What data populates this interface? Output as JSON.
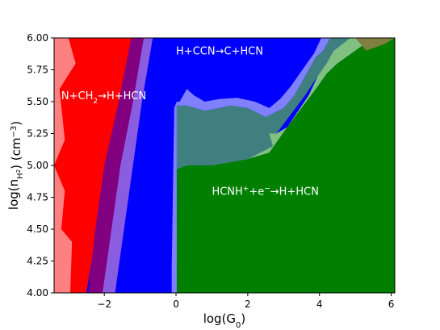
{
  "chart_data": {
    "type": "area",
    "title": "",
    "xlabel": {
      "base": "log(G",
      "sub": "0",
      "tail": ")"
    },
    "ylabel": {
      "base": "log(n",
      "sub": "H",
      "subsub": "2",
      "tail": ") (cm",
      "sup": "−3",
      "end": ")"
    },
    "xlim": [
      -3.4,
      6.1
    ],
    "ylim": [
      4.0,
      6.0
    ],
    "x_ticks": [
      -2,
      0,
      2,
      4,
      6
    ],
    "x_tick_labels": [
      "−2",
      "0",
      "2",
      "4",
      "6"
    ],
    "y_ticks": [
      4.0,
      4.25,
      4.5,
      4.75,
      5.0,
      5.25,
      5.5,
      5.75,
      6.0
    ],
    "y_tick_labels": [
      "4.00",
      "4.25",
      "4.50",
      "4.75",
      "5.00",
      "5.25",
      "5.50",
      "5.75",
      "6.00"
    ],
    "grid": false,
    "colors": {
      "background": "#0000ff",
      "n_ch2_region": "#ff0000",
      "n_ch2_light": "#ff8080",
      "dark_violet": "#800080",
      "light_violet": "#8a5ce0",
      "hcnh_region": "#007f00",
      "light_green": "#80c080",
      "teal_overlap": "#3f7f7f",
      "light_blue_overlap": "#8080ff",
      "olive": "#7f7f3f"
    },
    "regions": [
      {
        "name": "light-red-band",
        "color": "#ff8080",
        "polygon": [
          [
            -3.4,
            4.0
          ],
          [
            -2.55,
            4.0
          ],
          [
            -2.7,
            4.7
          ],
          [
            -2.35,
            5.6
          ],
          [
            -2.15,
            6.0
          ],
          [
            -3.4,
            6.0
          ]
        ]
      },
      {
        "name": "n-ch2-region",
        "color": "#ff0000",
        "polygon": [
          [
            -2.95,
            4.0
          ],
          [
            -2.5,
            4.0
          ],
          [
            -2.2,
            4.5
          ],
          [
            -1.9,
            5.0
          ],
          [
            -1.5,
            5.5
          ],
          [
            -1.2,
            6.0
          ],
          [
            -3.0,
            6.0
          ],
          [
            -2.8,
            5.8
          ],
          [
            -3.25,
            5.6
          ],
          [
            -3.1,
            5.2
          ],
          [
            -3.4,
            5.0
          ],
          [
            -3.1,
            4.8
          ],
          [
            -3.2,
            4.5
          ],
          [
            -2.9,
            4.4
          ]
        ]
      },
      {
        "name": "dark-violet-band",
        "color": "#800080",
        "polygon": [
          [
            -2.45,
            4.0
          ],
          [
            -2.0,
            4.0
          ],
          [
            -1.75,
            4.5
          ],
          [
            -1.5,
            5.0
          ],
          [
            -1.15,
            5.5
          ],
          [
            -0.85,
            6.0
          ],
          [
            -1.25,
            6.0
          ],
          [
            -1.6,
            5.5
          ],
          [
            -2.0,
            5.0
          ],
          [
            -2.25,
            4.5
          ]
        ]
      },
      {
        "name": "light-violet-band",
        "color": "#8a5ce0",
        "polygon": [
          [
            -2.05,
            4.0
          ],
          [
            -1.7,
            4.0
          ],
          [
            -1.45,
            4.5
          ],
          [
            -1.2,
            5.0
          ],
          [
            -0.95,
            5.5
          ],
          [
            -0.65,
            6.0
          ],
          [
            -0.9,
            6.0
          ],
          [
            -1.2,
            5.5
          ],
          [
            -1.55,
            5.0
          ],
          [
            -1.8,
            4.5
          ]
        ]
      },
      {
        "name": "hcnh-region",
        "color": "#007f00",
        "polygon": [
          [
            0.0,
            4.0
          ],
          [
            0.02,
            4.97
          ],
          [
            0.3,
            5.0
          ],
          [
            1.0,
            5.0
          ],
          [
            2.0,
            5.05
          ],
          [
            2.6,
            5.1
          ],
          [
            3.1,
            5.3
          ],
          [
            3.5,
            5.45
          ],
          [
            3.9,
            5.6
          ],
          [
            4.2,
            5.72
          ],
          [
            4.5,
            5.8
          ],
          [
            5.0,
            5.9
          ],
          [
            5.5,
            6.0
          ],
          [
            6.1,
            6.0
          ],
          [
            6.1,
            4.0
          ]
        ]
      },
      {
        "name": "light-green-band",
        "color": "#80c080",
        "polygon": [
          [
            0.02,
            4.97
          ],
          [
            0.3,
            5.0
          ],
          [
            1.0,
            5.0
          ],
          [
            2.0,
            5.05
          ],
          [
            2.6,
            5.1
          ],
          [
            3.1,
            5.3
          ],
          [
            3.5,
            5.45
          ],
          [
            3.9,
            5.6
          ],
          [
            4.2,
            5.72
          ],
          [
            4.5,
            5.8
          ],
          [
            5.0,
            5.9
          ],
          [
            5.5,
            6.0
          ],
          [
            4.85,
            6.0
          ],
          [
            4.4,
            5.9
          ],
          [
            4.1,
            5.8
          ],
          [
            3.95,
            5.7
          ],
          [
            3.7,
            5.55
          ],
          [
            3.1,
            5.3
          ],
          [
            2.8,
            5.25
          ],
          [
            2.6,
            5.25
          ],
          [
            1.6,
            5.3
          ],
          [
            0.02,
            5.35
          ]
        ]
      },
      {
        "name": "teal-overlap",
        "color": "#3f7f7f",
        "polygon": [
          [
            0.02,
            4.97
          ],
          [
            0.3,
            5.0
          ],
          [
            1.0,
            5.0
          ],
          [
            2.0,
            5.05
          ],
          [
            2.7,
            5.15
          ],
          [
            2.6,
            5.25
          ],
          [
            2.8,
            5.25
          ],
          [
            3.2,
            5.4
          ],
          [
            3.6,
            5.55
          ],
          [
            3.95,
            5.7
          ],
          [
            4.2,
            5.8
          ],
          [
            4.4,
            5.9
          ],
          [
            4.85,
            6.0
          ],
          [
            4.3,
            6.0
          ],
          [
            4.1,
            5.9
          ],
          [
            3.9,
            5.85
          ],
          [
            3.6,
            5.7
          ],
          [
            3.3,
            5.55
          ],
          [
            3.0,
            5.45
          ],
          [
            2.5,
            5.38
          ],
          [
            2.0,
            5.45
          ],
          [
            1.5,
            5.47
          ],
          [
            1.2,
            5.45
          ],
          [
            0.8,
            5.43
          ],
          [
            0.3,
            5.47
          ],
          [
            0.02,
            5.47
          ]
        ]
      },
      {
        "name": "light-blue-overlap",
        "color": "#8080ff",
        "polygon": [
          [
            0.02,
            5.47
          ],
          [
            0.3,
            5.47
          ],
          [
            0.8,
            5.43
          ],
          [
            1.2,
            5.45
          ],
          [
            1.5,
            5.47
          ],
          [
            2.0,
            5.45
          ],
          [
            2.5,
            5.38
          ],
          [
            3.0,
            5.45
          ],
          [
            3.3,
            5.55
          ],
          [
            3.6,
            5.7
          ],
          [
            3.9,
            5.85
          ],
          [
            4.1,
            5.9
          ],
          [
            4.3,
            6.0
          ],
          [
            4.05,
            6.0
          ],
          [
            3.85,
            5.88
          ],
          [
            3.6,
            5.78
          ],
          [
            3.2,
            5.62
          ],
          [
            2.9,
            5.52
          ],
          [
            2.6,
            5.45
          ],
          [
            2.2,
            5.5
          ],
          [
            1.7,
            5.53
          ],
          [
            1.2,
            5.52
          ],
          [
            0.8,
            5.5
          ],
          [
            0.5,
            5.55
          ],
          [
            0.3,
            5.6
          ],
          [
            0.1,
            5.5
          ],
          [
            0.02,
            5.5
          ]
        ]
      },
      {
        "name": "olive-corner",
        "color": "#7f7f3f",
        "polygon": [
          [
            5.0,
            6.0
          ],
          [
            5.3,
            5.9
          ],
          [
            5.8,
            5.95
          ],
          [
            6.1,
            6.0
          ]
        ]
      },
      {
        "name": "thin-light-line",
        "color": "#8080ff",
        "polygon": [
          [
            -0.12,
            4.0
          ],
          [
            0.02,
            4.0
          ],
          [
            0.02,
            5.5
          ],
          [
            -0.05,
            5.45
          ],
          [
            -0.12,
            4.2
          ]
        ]
      }
    ],
    "annotations": [
      {
        "name": "n-ch2-reaction",
        "x": -3.2,
        "y": 5.52,
        "parts": [
          [
            "N+CH",
            ""
          ],
          [
            "2",
            "sub"
          ],
          [
            "→H+HCN",
            ""
          ]
        ]
      },
      {
        "name": "ccn-reaction",
        "x": 0.0,
        "y": 5.87,
        "parts": [
          [
            "H+CCN→C+HCN",
            ""
          ]
        ]
      },
      {
        "name": "hcnh-reaction",
        "x": 1.0,
        "y": 4.77,
        "parts": [
          [
            "HCNH",
            ""
          ],
          [
            "+",
            "sup"
          ],
          [
            "+e",
            ""
          ],
          [
            "−",
            "sup"
          ],
          [
            "→H+HCN",
            ""
          ]
        ]
      }
    ]
  }
}
